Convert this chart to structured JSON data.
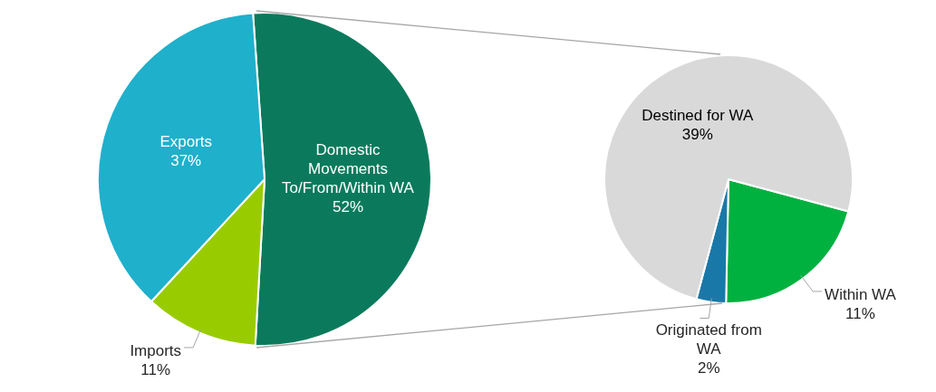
{
  "chart_data": [
    {
      "type": "pie",
      "categories": [
        "Domestic Movements To/From/Within WA",
        "Imports",
        "Exports"
      ],
      "values": [
        52,
        11,
        37
      ],
      "colors": [
        "#0b7a5c",
        "#99cc00",
        "#1fb0cc"
      ],
      "value_labels": [
        "52%",
        "11%",
        "37%"
      ]
    },
    {
      "type": "pie",
      "categories": [
        "Within WA",
        "Originated from WA",
        "Destined for WA"
      ],
      "values": [
        11,
        2,
        39
      ],
      "colors": [
        "#00b140",
        "#1a78a8",
        "#d9d9d9"
      ],
      "value_labels": [
        "11%",
        "2%",
        "39%"
      ]
    }
  ]
}
